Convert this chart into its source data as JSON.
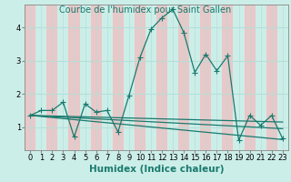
{
  "title": "Courbe de l'humidex pour Saint Gallen",
  "xlabel": "Humidex (Indice chaleur)",
  "bg_color": "#cceee8",
  "grid_color_h": "#b8ddd8",
  "grid_color_v": "#e8c8c8",
  "line_color": "#1a7a6e",
  "xlim": [
    -0.5,
    23.5
  ],
  "ylim": [
    0.3,
    4.7
  ],
  "yticks": [
    1,
    2,
    3,
    4
  ],
  "xticks": [
    0,
    1,
    2,
    3,
    4,
    5,
    6,
    7,
    8,
    9,
    10,
    11,
    12,
    13,
    14,
    15,
    16,
    17,
    18,
    19,
    20,
    21,
    22,
    23
  ],
  "line1_x": [
    0,
    1,
    2,
    3,
    4,
    5,
    6,
    7,
    8,
    9,
    10,
    11,
    12,
    13,
    14,
    15,
    16,
    17,
    18,
    19,
    20,
    21,
    22,
    23
  ],
  "line1_y": [
    1.35,
    1.5,
    1.5,
    1.75,
    0.7,
    1.7,
    1.45,
    1.5,
    0.85,
    1.95,
    3.1,
    3.95,
    4.3,
    4.55,
    3.85,
    2.65,
    3.2,
    2.7,
    3.15,
    0.6,
    1.35,
    1.05,
    1.35,
    0.65
  ],
  "line2_x": [
    0,
    23
  ],
  "line2_y": [
    1.35,
    0.62
  ],
  "line3_x": [
    0,
    23
  ],
  "line3_y": [
    1.35,
    0.95
  ],
  "line4_x": [
    0,
    23
  ],
  "line4_y": [
    1.35,
    1.15
  ],
  "title_fontsize": 7.0,
  "xlabel_fontsize": 7.5,
  "tick_fontsize": 6.0
}
